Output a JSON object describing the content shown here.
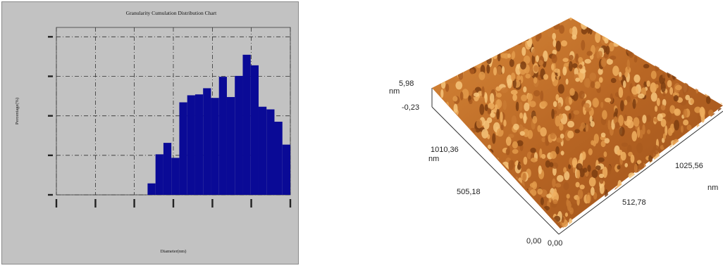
{
  "chart_data": [
    {
      "type": "bar",
      "title": "Granularity Cumulation Distribution  Chart",
      "xlabel": "Diameter(nm)",
      "ylabel": "Percentage(%)",
      "ylim": [
        0,
        19
      ],
      "grid": true,
      "bar_color": "#0a0a96",
      "panel_color": "#c2c2c2",
      "bars": [
        {
          "x0": 4.6,
          "x1": 5.0,
          "value": 1.3
        },
        {
          "x0": 5.0,
          "x1": 5.4,
          "value": 4.6
        },
        {
          "x0": 5.4,
          "x1": 5.8,
          "value": 5.9
        },
        {
          "x0": 5.8,
          "x1": 6.2,
          "value": 4.2
        },
        {
          "x0": 6.2,
          "x1": 6.6,
          "value": 10.5
        },
        {
          "x0": 6.6,
          "x1": 7.0,
          "value": 11.3
        },
        {
          "x0": 7.0,
          "x1": 7.4,
          "value": 11.4
        },
        {
          "x0": 7.4,
          "x1": 7.8,
          "value": 12.1
        },
        {
          "x0": 7.8,
          "x1": 8.2,
          "value": 11.0
        },
        {
          "x0": 8.2,
          "x1": 8.6,
          "value": 13.4
        },
        {
          "x0": 8.6,
          "x1": 9.0,
          "value": 11.1
        },
        {
          "x0": 9.0,
          "x1": 9.4,
          "value": 13.5
        },
        {
          "x0": 9.4,
          "x1": 9.8,
          "value": 15.9
        },
        {
          "x0": 9.8,
          "x1": 10.2,
          "value": 14.7
        },
        {
          "x0": 10.2,
          "x1": 10.6,
          "value": 10.0
        },
        {
          "x0": 10.6,
          "x1": 11.0,
          "value": 9.7
        },
        {
          "x0": 11.0,
          "x1": 11.4,
          "value": 8.3
        },
        {
          "x0": 11.4,
          "x1": 11.8,
          "value": 5.7
        }
      ],
      "xlim": [
        0,
        11.8
      ]
    },
    {
      "type": "surface",
      "surface_color": "#c87a30",
      "z_axis": {
        "unit": "nm",
        "max_label": "5,98",
        "min_label": "-0,23"
      },
      "y_axis": {
        "unit": "nm",
        "tick_labels": [
          "0,00",
          "505,18",
          "1010,36"
        ]
      },
      "x_axis": {
        "unit": "nm",
        "tick_labels": [
          "0,00",
          "512,78",
          "1025,56"
        ]
      }
    }
  ]
}
